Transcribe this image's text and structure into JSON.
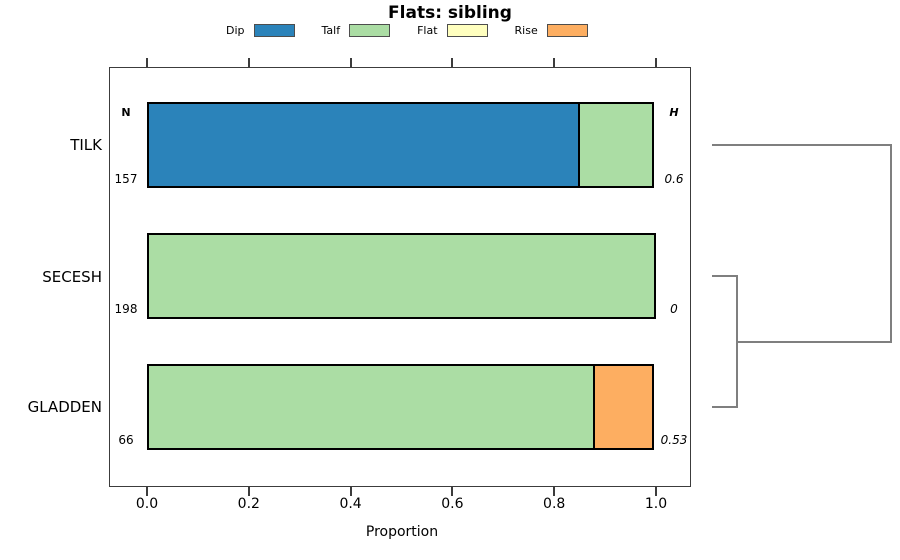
{
  "title": "Flats: sibling",
  "legend": {
    "items": [
      {
        "label": "Dip",
        "color": "#2B83BA"
      },
      {
        "label": "Talf",
        "color": "#ABDDA4"
      },
      {
        "label": "Flat",
        "color": "#FFFFBF"
      },
      {
        "label": "Rise",
        "color": "#FDAE61"
      }
    ]
  },
  "columns": {
    "left_header": "N",
    "right_header": "H"
  },
  "rows": [
    {
      "label": "TILK",
      "n": "157",
      "h": "0.6"
    },
    {
      "label": "SECESH",
      "n": "198",
      "h": "0"
    },
    {
      "label": "GLADDEN",
      "n": "66",
      "h": "0.53"
    }
  ],
  "axis": {
    "xlabel": "Proportion",
    "ticks": [
      "0.0",
      "0.2",
      "0.4",
      "0.6",
      "0.8",
      "1.0"
    ]
  },
  "chart_data": {
    "type": "bar",
    "orientation": "horizontal",
    "stacked": true,
    "title": "Flats: sibling",
    "xlabel": "Proportion",
    "xlim": [
      0,
      1
    ],
    "grid": false,
    "legend_position": "top",
    "categories": [
      "TILK",
      "SECESH",
      "GLADDEN"
    ],
    "n_values": [
      157,
      198,
      66
    ],
    "h_values": [
      "0.6",
      "0",
      "0.53"
    ],
    "series": [
      {
        "name": "Dip",
        "color": "#2B83BA",
        "values": [
          0.85,
          0,
          0
        ]
      },
      {
        "name": "Talf",
        "color": "#ABDDA4",
        "values": [
          0.15,
          1.0,
          0.88
        ]
      },
      {
        "name": "Flat",
        "color": "#FFFFBF",
        "values": [
          0,
          0,
          0
        ]
      },
      {
        "name": "Rise",
        "color": "#FDAE61",
        "values": [
          0,
          0,
          0.12
        ]
      }
    ],
    "dendrogram": {
      "merges": [
        {
          "clusters": [
            "SECESH",
            "GLADDEN"
          ],
          "height": "low"
        },
        {
          "clusters": [
            "TILK",
            "(SECESH,GLADDEN)"
          ],
          "height": "high"
        }
      ]
    }
  }
}
